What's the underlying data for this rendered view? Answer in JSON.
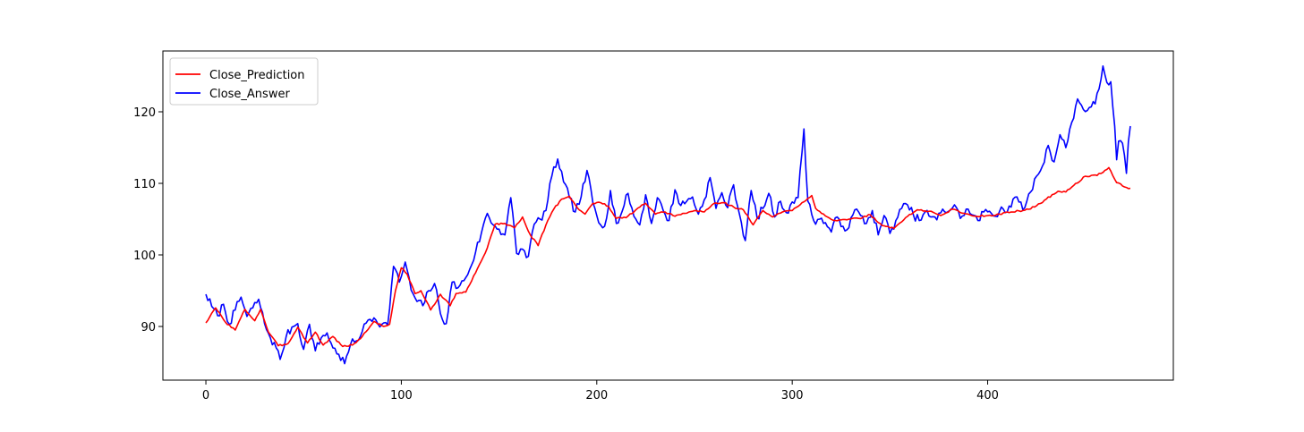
{
  "chart_data": {
    "type": "line",
    "x": {
      "start": 0,
      "end": 473,
      "xlim": [
        -22,
        495
      ],
      "ticks": [
        0,
        100,
        200,
        300,
        400
      ],
      "tick_labels": [
        "0",
        "100",
        "200",
        "300",
        "400"
      ]
    },
    "ylim": [
      82.5,
      128.5
    ],
    "y_ticks": [
      90,
      100,
      110,
      120
    ],
    "y_tick_labels": [
      "90",
      "100",
      "110",
      "120"
    ],
    "grid": false,
    "legend_position": "top-left",
    "series": [
      {
        "name": "Close_Prediction",
        "color": "#ff0000",
        "anchors": [
          [
            0,
            90.5
          ],
          [
            5,
            92.6
          ],
          [
            10,
            90.6
          ],
          [
            15,
            89.5
          ],
          [
            20,
            92.4
          ],
          [
            25,
            90.8
          ],
          [
            28,
            92.4
          ],
          [
            32,
            89.2
          ],
          [
            37,
            87.3
          ],
          [
            42,
            87.6
          ],
          [
            47,
            89.9
          ],
          [
            52,
            87.7
          ],
          [
            56,
            89.2
          ],
          [
            60,
            87.4
          ],
          [
            65,
            88.6
          ],
          [
            70,
            87.2
          ],
          [
            75,
            87.4
          ],
          [
            80,
            88.6
          ],
          [
            86,
            90.7
          ],
          [
            91,
            90.0
          ],
          [
            94,
            90.3
          ],
          [
            97,
            95.0
          ],
          [
            100,
            98.2
          ],
          [
            103,
            97.3
          ],
          [
            107,
            94.6
          ],
          [
            110,
            95.0
          ],
          [
            115,
            92.3
          ],
          [
            120,
            94.5
          ],
          [
            125,
            92.9
          ],
          [
            128,
            94.6
          ],
          [
            133,
            94.8
          ],
          [
            138,
            97.5
          ],
          [
            143,
            100.3
          ],
          [
            148,
            104.3
          ],
          [
            153,
            104.4
          ],
          [
            158,
            103.8
          ],
          [
            162,
            105.3
          ],
          [
            166,
            102.8
          ],
          [
            170,
            101.3
          ],
          [
            174,
            104.2
          ],
          [
            178,
            106.4
          ],
          [
            182,
            107.8
          ],
          [
            186,
            108.2
          ],
          [
            190,
            106.6
          ],
          [
            194,
            105.7
          ],
          [
            198,
            107.2
          ],
          [
            202,
            107.3
          ],
          [
            206,
            106.8
          ],
          [
            210,
            105.1
          ],
          [
            215,
            105.2
          ],
          [
            220,
            106.3
          ],
          [
            225,
            107.2
          ],
          [
            230,
            105.7
          ],
          [
            235,
            106.0
          ],
          [
            240,
            105.4
          ],
          [
            245,
            105.8
          ],
          [
            250,
            106.2
          ],
          [
            255,
            106.0
          ],
          [
            260,
            107.2
          ],
          [
            265,
            107.3
          ],
          [
            270,
            106.7
          ],
          [
            275,
            106.3
          ],
          [
            280,
            104.2
          ],
          [
            285,
            106.2
          ],
          [
            290,
            105.3
          ],
          [
            295,
            106.0
          ],
          [
            300,
            106.2
          ],
          [
            305,
            107.3
          ],
          [
            310,
            108.3
          ],
          [
            312,
            106.5
          ],
          [
            318,
            105.3
          ],
          [
            322,
            104.8
          ],
          [
            328,
            104.9
          ],
          [
            334,
            105.1
          ],
          [
            340,
            105.6
          ],
          [
            346,
            104.1
          ],
          [
            352,
            103.7
          ],
          [
            358,
            105.2
          ],
          [
            364,
            106.3
          ],
          [
            370,
            106.1
          ],
          [
            376,
            105.5
          ],
          [
            382,
            106.4
          ],
          [
            388,
            105.8
          ],
          [
            394,
            105.4
          ],
          [
            400,
            105.5
          ],
          [
            406,
            105.7
          ],
          [
            412,
            106.0
          ],
          [
            418,
            106.2
          ],
          [
            424,
            106.7
          ],
          [
            430,
            107.8
          ],
          [
            436,
            108.9
          ],
          [
            440,
            108.8
          ],
          [
            444,
            109.7
          ],
          [
            450,
            111.0
          ],
          [
            456,
            111.1
          ],
          [
            462,
            112.2
          ],
          [
            466,
            110.1
          ],
          [
            470,
            109.5
          ],
          [
            473,
            109.3
          ]
        ]
      },
      {
        "name": "Close_Answer",
        "color": "#0000ff",
        "anchors": [
          [
            0,
            94.5
          ],
          [
            3,
            92.8
          ],
          [
            6,
            91.5
          ],
          [
            9,
            93.1
          ],
          [
            12,
            90.3
          ],
          [
            15,
            92.3
          ],
          [
            18,
            94.1
          ],
          [
            21,
            91.4
          ],
          [
            24,
            92.6
          ],
          [
            27,
            93.8
          ],
          [
            30,
            90.4
          ],
          [
            33,
            88.4
          ],
          [
            36,
            87.0
          ],
          [
            38,
            85.4
          ],
          [
            41,
            88.5
          ],
          [
            44,
            89.9
          ],
          [
            47,
            90.4
          ],
          [
            50,
            86.8
          ],
          [
            53,
            90.3
          ],
          [
            56,
            86.6
          ],
          [
            59,
            88.4
          ],
          [
            62,
            89.1
          ],
          [
            65,
            87.0
          ],
          [
            68,
            86.1
          ],
          [
            71,
            84.8
          ],
          [
            74,
            87.5
          ],
          [
            77,
            88.0
          ],
          [
            80,
            89.3
          ],
          [
            83,
            90.9
          ],
          [
            86,
            91.2
          ],
          [
            90,
            90.3
          ],
          [
            93,
            90.2
          ],
          [
            96,
            98.4
          ],
          [
            99,
            96.2
          ],
          [
            102,
            99.0
          ],
          [
            105,
            95.1
          ],
          [
            108,
            93.5
          ],
          [
            111,
            92.9
          ],
          [
            114,
            95.0
          ],
          [
            117,
            96.0
          ],
          [
            120,
            91.8
          ],
          [
            123,
            90.4
          ],
          [
            126,
            96.2
          ],
          [
            129,
            95.4
          ],
          [
            132,
            96.4
          ],
          [
            135,
            98.0
          ],
          [
            138,
            100.4
          ],
          [
            141,
            103.1
          ],
          [
            144,
            105.8
          ],
          [
            147,
            104.2
          ],
          [
            150,
            103.6
          ],
          [
            153,
            102.8
          ],
          [
            156,
            108.0
          ],
          [
            159,
            100.2
          ],
          [
            162,
            100.8
          ],
          [
            165,
            99.8
          ],
          [
            168,
            104.3
          ],
          [
            171,
            105.0
          ],
          [
            174,
            106.2
          ],
          [
            177,
            111.0
          ],
          [
            180,
            113.4
          ],
          [
            183,
            110.2
          ],
          [
            186,
            108.0
          ],
          [
            189,
            106.0
          ],
          [
            192,
            108.1
          ],
          [
            195,
            111.8
          ],
          [
            198,
            107.3
          ],
          [
            201,
            104.5
          ],
          [
            204,
            104.0
          ],
          [
            207,
            109.0
          ],
          [
            210,
            104.4
          ],
          [
            213,
            106.1
          ],
          [
            216,
            108.6
          ],
          [
            219,
            105.4
          ],
          [
            222,
            104.2
          ],
          [
            225,
            108.4
          ],
          [
            228,
            104.4
          ],
          [
            231,
            108.0
          ],
          [
            234,
            106.2
          ],
          [
            237,
            104.8
          ],
          [
            240,
            109.1
          ],
          [
            243,
            106.9
          ],
          [
            246,
            107.5
          ],
          [
            249,
            108.1
          ],
          [
            252,
            105.7
          ],
          [
            255,
            107.7
          ],
          [
            258,
            110.8
          ],
          [
            261,
            106.5
          ],
          [
            264,
            108.7
          ],
          [
            267,
            106.6
          ],
          [
            270,
            109.8
          ],
          [
            273,
            105.7
          ],
          [
            276,
            102.0
          ],
          [
            279,
            109.0
          ],
          [
            282,
            105.2
          ],
          [
            285,
            106.5
          ],
          [
            288,
            108.6
          ],
          [
            291,
            105.3
          ],
          [
            294,
            107.5
          ],
          [
            297,
            105.9
          ],
          [
            300,
            107.4
          ],
          [
            303,
            108.0
          ],
          [
            306,
            117.6
          ],
          [
            308,
            107.5
          ],
          [
            311,
            104.8
          ],
          [
            314,
            105.0
          ],
          [
            317,
            104.5
          ],
          [
            320,
            103.2
          ],
          [
            323,
            105.3
          ],
          [
            326,
            104.0
          ],
          [
            329,
            103.8
          ],
          [
            332,
            106.3
          ],
          [
            335,
            105.5
          ],
          [
            338,
            104.4
          ],
          [
            341,
            106.2
          ],
          [
            344,
            102.8
          ],
          [
            347,
            105.5
          ],
          [
            350,
            103.0
          ],
          [
            353,
            104.8
          ],
          [
            356,
            106.5
          ],
          [
            359,
            107.0
          ],
          [
            362,
            105.6
          ],
          [
            365,
            104.8
          ],
          [
            368,
            106.0
          ],
          [
            371,
            105.3
          ],
          [
            374,
            104.9
          ],
          [
            377,
            106.4
          ],
          [
            380,
            106.1
          ],
          [
            383,
            107.0
          ],
          [
            386,
            105.1
          ],
          [
            389,
            106.4
          ],
          [
            392,
            105.6
          ],
          [
            395,
            104.8
          ],
          [
            398,
            106.0
          ],
          [
            401,
            106.1
          ],
          [
            404,
            105.4
          ],
          [
            407,
            106.7
          ],
          [
            410,
            106.0
          ],
          [
            413,
            107.8
          ],
          [
            416,
            107.4
          ],
          [
            419,
            106.6
          ],
          [
            422,
            108.8
          ],
          [
            425,
            111.0
          ],
          [
            428,
            112.4
          ],
          [
            431,
            115.3
          ],
          [
            434,
            113.0
          ],
          [
            437,
            116.8
          ],
          [
            440,
            115.0
          ],
          [
            443,
            118.5
          ],
          [
            446,
            121.8
          ],
          [
            449,
            120.3
          ],
          [
            452,
            120.6
          ],
          [
            455,
            121.1
          ],
          [
            457,
            123.2
          ],
          [
            459,
            126.4
          ],
          [
            461,
            124.1
          ],
          [
            463,
            124.2
          ],
          [
            465,
            118.0
          ],
          [
            466,
            113.3
          ],
          [
            467,
            115.9
          ],
          [
            469,
            115.6
          ],
          [
            471,
            111.4
          ],
          [
            472,
            115.8
          ],
          [
            473,
            118.0
          ]
        ]
      }
    ]
  }
}
